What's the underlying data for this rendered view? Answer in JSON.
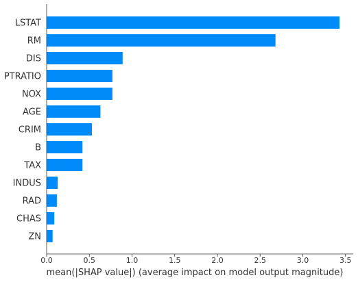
{
  "chart_data": {
    "type": "bar",
    "orientation": "horizontal",
    "categories": [
      "LSTAT",
      "RM",
      "DIS",
      "PTRATIO",
      "NOX",
      "AGE",
      "CRIM",
      "B",
      "TAX",
      "INDUS",
      "RAD",
      "CHAS",
      "ZN"
    ],
    "values": [
      3.43,
      2.68,
      0.89,
      0.77,
      0.77,
      0.63,
      0.53,
      0.42,
      0.42,
      0.13,
      0.12,
      0.09,
      0.07
    ],
    "xlabel": "mean(|SHAP value|) (average impact on model output magnitude)",
    "ylabel": "",
    "xlim": [
      0,
      3.6
    ],
    "xticks": [
      0.0,
      0.5,
      1.0,
      1.5,
      2.0,
      2.5,
      3.0,
      3.5
    ],
    "xtick_labels": [
      "0.0",
      "0.5",
      "1.0",
      "1.5",
      "2.0",
      "2.5",
      "3.0",
      "3.5"
    ],
    "bar_color": "#008bfb",
    "grid": false
  }
}
